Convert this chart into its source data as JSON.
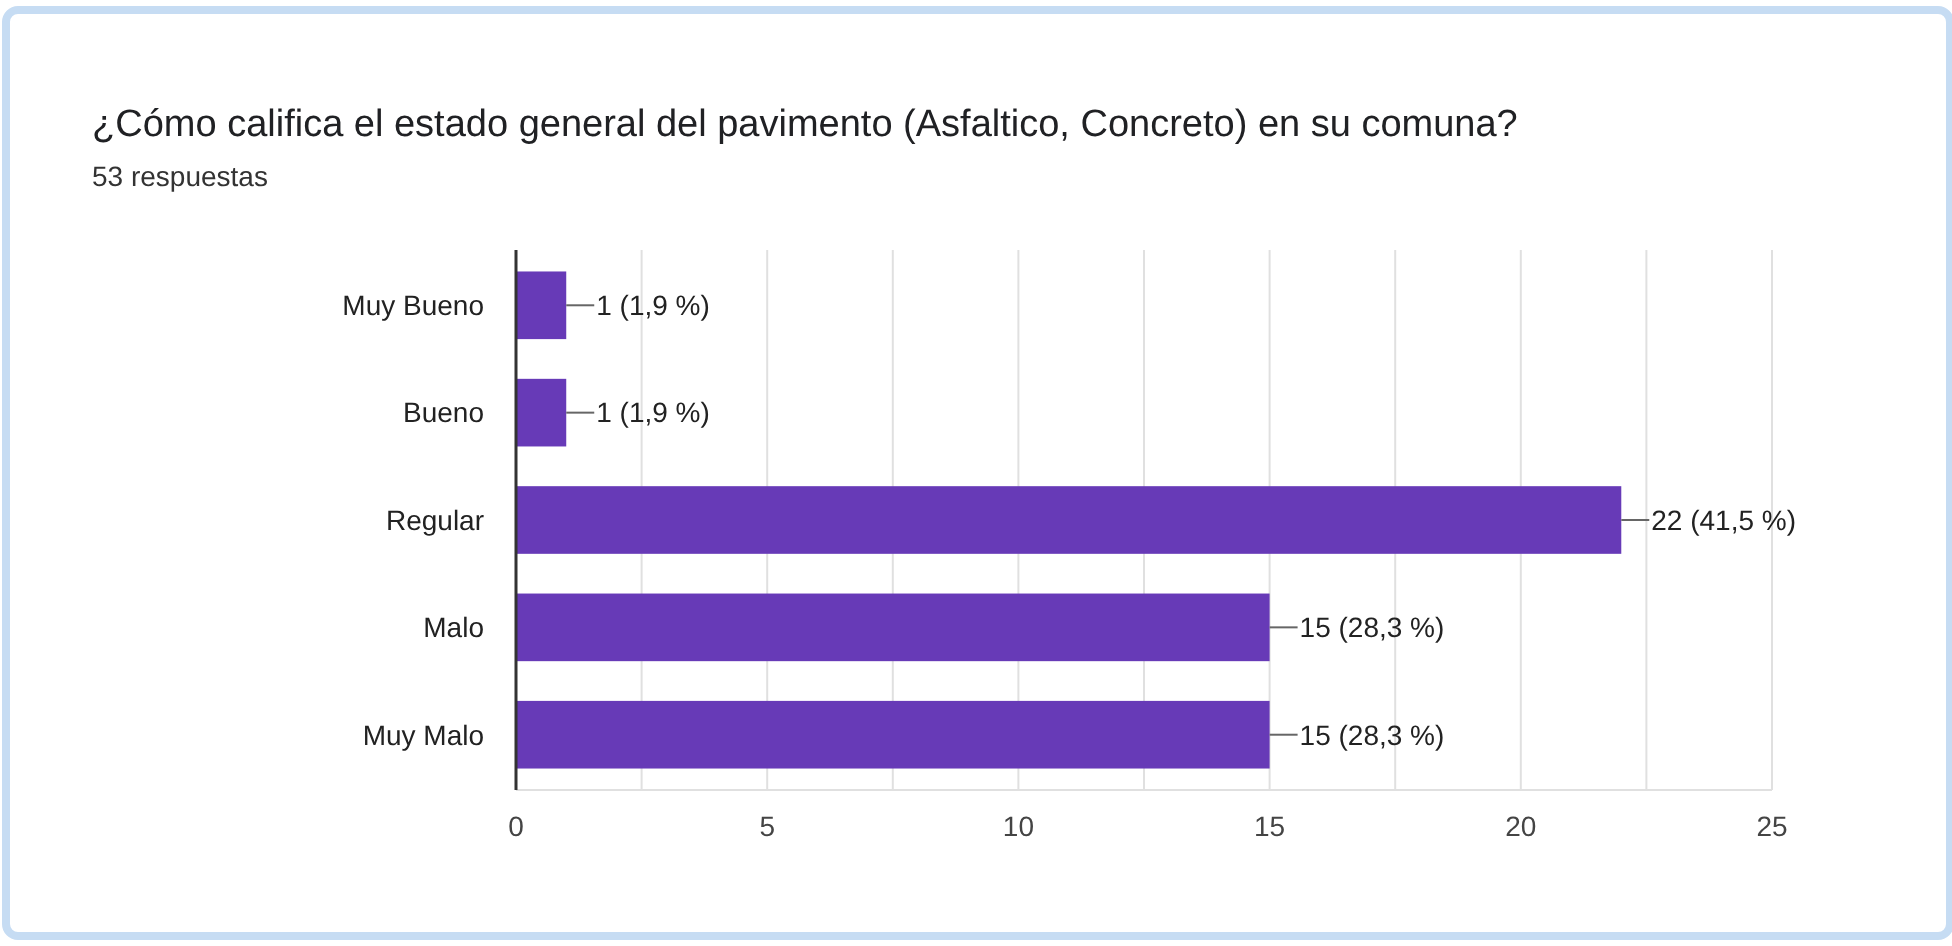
{
  "chart_data": {
    "type": "bar",
    "orientation": "horizontal",
    "title": "¿Cómo califica el estado general del pavimento (Asfaltico, Concreto) en su comuna?",
    "subtitle": "53 respuestas",
    "categories": [
      "Muy Bueno",
      "Bueno",
      "Regular",
      "Malo",
      "Muy Malo"
    ],
    "values": [
      1,
      1,
      22,
      15,
      15
    ],
    "value_labels": [
      "1 (1,9 %)",
      "1 (1,9 %)",
      "22 (41,5 %)",
      "15 (28,3 %)",
      "15 (28,3 %)"
    ],
    "color": "#673ab7",
    "xlim": [
      0,
      25
    ],
    "xticks": [
      0,
      {
        "value": 2.5,
        "label": null
      },
      5,
      {
        "value": 7.5,
        "label": null
      },
      10,
      {
        "value": 12.5,
        "label": null
      },
      15,
      {
        "value": 17.5,
        "label": null
      },
      20,
      {
        "value": 22.5,
        "label": null
      },
      25
    ],
    "grid": "x"
  }
}
